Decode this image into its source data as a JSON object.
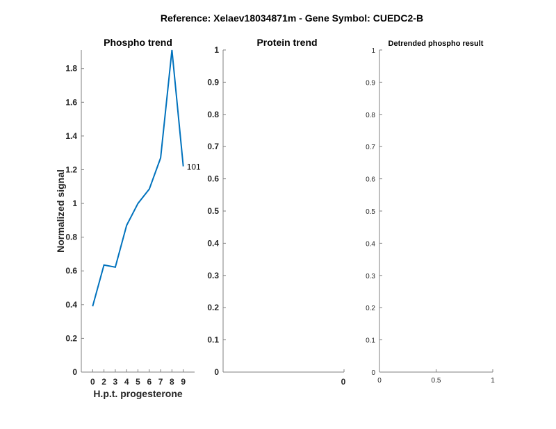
{
  "title": "Reference:  Xelaev18034871m - Gene Symbol:  CUEDC2-B",
  "colors": {
    "line": "#0072BD",
    "axis": "#7f7f7f",
    "text": "#262626"
  },
  "chart_data": [
    {
      "type": "line",
      "title": "Phospho trend",
      "xlabel": "H.p.t. progesterone",
      "ylabel": "Normalized signal",
      "categories": [
        "0",
        "2",
        "3",
        "4",
        "5",
        "6",
        "7",
        "8",
        "9"
      ],
      "values": [
        0.39,
        0.635,
        0.622,
        0.87,
        1.0,
        1.085,
        1.27,
        1.91,
        1.22
      ],
      "ylim": [
        0,
        1.91
      ],
      "yticks": [
        "0",
        "0.2",
        "0.4",
        "0.6",
        "0.8",
        "1",
        "1.2",
        "1.4",
        "1.6",
        "1.8"
      ],
      "annotation": "101",
      "grid": false
    },
    {
      "type": "line",
      "title": "Protein trend",
      "ylim": [
        0,
        1
      ],
      "yticks": [
        "0",
        "0.1",
        "0.2",
        "0.3",
        "0.4",
        "0.5",
        "0.6",
        "0.7",
        "0.8",
        "0.9",
        "1"
      ],
      "xticks": [
        "0"
      ],
      "series": [],
      "grid": false
    },
    {
      "type": "line",
      "title": "Detrended phospho result",
      "xlim": [
        0,
        1
      ],
      "ylim": [
        0,
        1
      ],
      "yticks": [
        "0",
        "0.1",
        "0.2",
        "0.3",
        "0.4",
        "0.5",
        "0.6",
        "0.7",
        "0.8",
        "0.9",
        "1"
      ],
      "xticks": [
        "0",
        "0.5",
        "1"
      ],
      "series": [],
      "grid": false
    }
  ]
}
